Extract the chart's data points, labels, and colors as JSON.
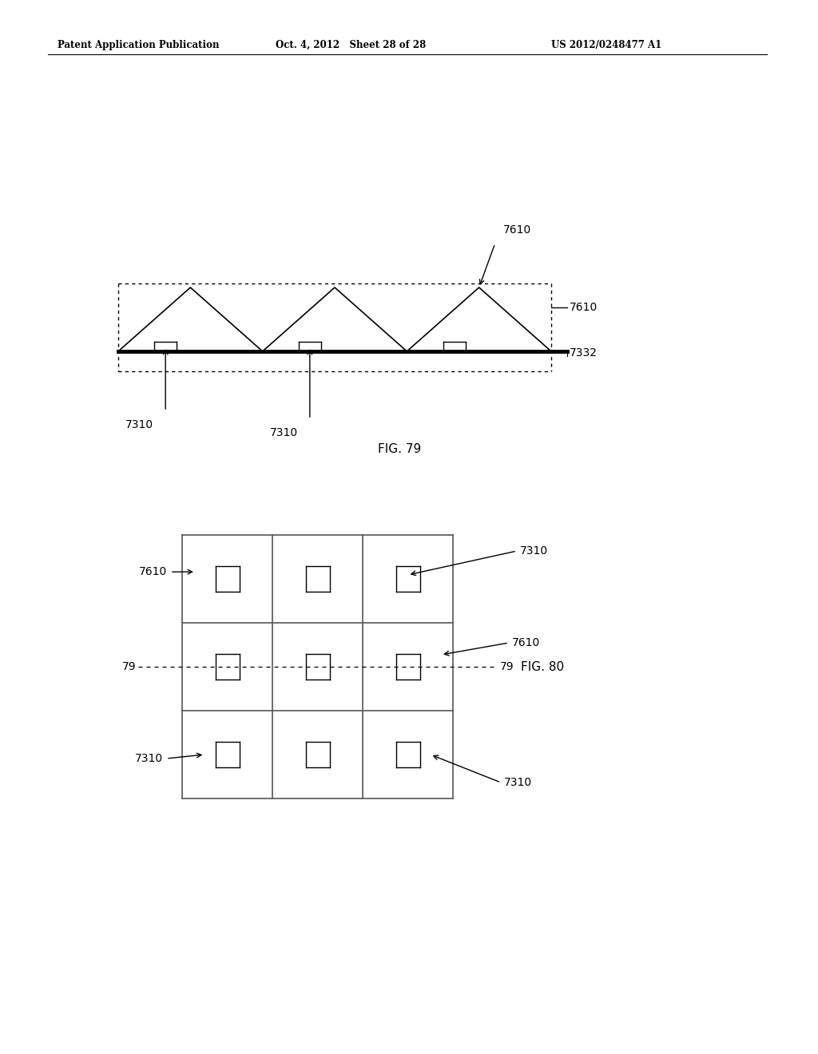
{
  "header_left": "Patent Application Publication",
  "header_center": "Oct. 4, 2012   Sheet 28 of 28",
  "header_right": "US 2012/0248477 A1",
  "fig79_label": "FIG. 79",
  "fig80_label": "FIG. 80",
  "background_color": "#ffffff"
}
